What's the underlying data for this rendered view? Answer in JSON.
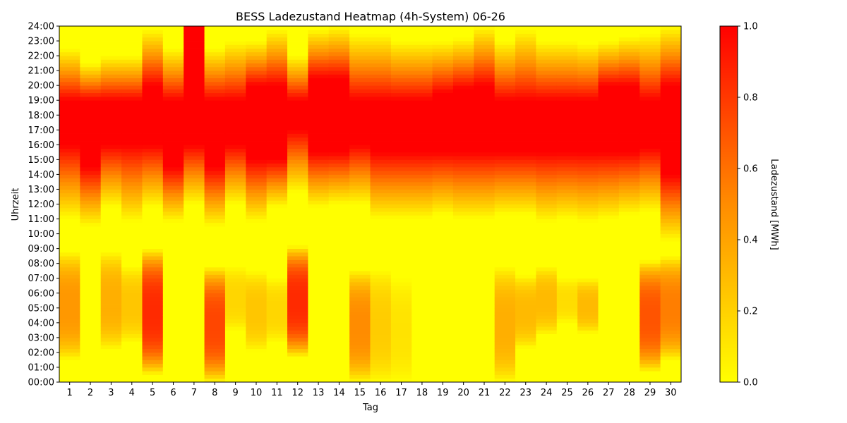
{
  "chart_data": {
    "type": "heatmap",
    "title": "BESS Ladezustand Heatmap (4h-System) 06-26",
    "xlabel": "Tag",
    "ylabel": "Uhrzeit",
    "colorbar_label": "Ladezustand [MWh]",
    "colorbar_ticks": [
      "0.0",
      "0.2",
      "0.4",
      "0.6",
      "0.8",
      "1.0"
    ],
    "value_range": [
      0,
      1
    ],
    "colormap": [
      "#ffff00",
      "#ff8c00",
      "#ff0000"
    ],
    "x_categories": [
      "1",
      "2",
      "3",
      "4",
      "5",
      "6",
      "7",
      "8",
      "9",
      "10",
      "11",
      "12",
      "13",
      "14",
      "15",
      "16",
      "17",
      "18",
      "19",
      "20",
      "21",
      "22",
      "23",
      "24",
      "25",
      "26",
      "27",
      "28",
      "29",
      "30"
    ],
    "y_ticks": [
      "00:00",
      "01:00",
      "02:00",
      "03:00",
      "04:00",
      "05:00",
      "06:00",
      "07:00",
      "08:00",
      "09:00",
      "10:00",
      "11:00",
      "12:00",
      "13:00",
      "14:00",
      "15:00",
      "16:00",
      "17:00",
      "18:00",
      "19:00",
      "20:00",
      "21:00",
      "22:00",
      "23:00",
      "24:00"
    ],
    "intervals_per_day": 96,
    "days": [
      {
        "day": 1,
        "night_charge": 0.45,
        "night_start": 1.5,
        "night_end": 8.8,
        "ramp_start": 11.0,
        "full_start": 16.0,
        "full_end": 19.0,
        "empty_at": 22.5
      },
      {
        "day": 2,
        "night_charge": 0.0,
        "night_start": 0,
        "night_end": 0,
        "ramp_start": 10.5,
        "full_start": 14.5,
        "full_end": 19.0,
        "empty_at": 21.5
      },
      {
        "day": 3,
        "night_charge": 0.35,
        "night_start": 2.2,
        "night_end": 8.8,
        "ramp_start": 11.8,
        "full_start": 16.0,
        "full_end": 19.0,
        "empty_at": 22.0
      },
      {
        "day": 4,
        "night_charge": 0.25,
        "night_start": 2.7,
        "night_end": 7.8,
        "ramp_start": 10.8,
        "full_start": 16.0,
        "full_end": 19.0,
        "empty_at": 22.0
      },
      {
        "day": 5,
        "night_charge": 0.85,
        "night_start": 0.5,
        "night_end": 9.0,
        "ramp_start": 11.8,
        "full_start": 16.0,
        "full_end": 20.0,
        "empty_at": 23.8
      },
      {
        "day": 6,
        "night_charge": 0.0,
        "night_start": 0,
        "night_end": 0,
        "ramp_start": 10.8,
        "full_start": 14.5,
        "full_end": 19.0,
        "empty_at": 22.5
      },
      {
        "day": 7,
        "night_charge": 0.0,
        "night_start": 0,
        "night_end": 0,
        "ramp_start": 12.0,
        "full_start": 16.0,
        "full_end": 24.0,
        "empty_at": 24.0
      },
      {
        "day": 8,
        "night_charge": 0.75,
        "night_start": 0.0,
        "night_end": 7.8,
        "ramp_start": 10.5,
        "full_start": 14.5,
        "full_end": 19.0,
        "empty_at": 22.5
      },
      {
        "day": 9,
        "night_charge": 0.18,
        "night_start": 3.5,
        "night_end": 7.8,
        "ramp_start": 12.0,
        "full_start": 16.0,
        "full_end": 19.0,
        "empty_at": 23.0
      },
      {
        "day": 10,
        "night_charge": 0.25,
        "night_start": 2.1,
        "night_end": 7.5,
        "ramp_start": 10.8,
        "full_start": 15.0,
        "full_end": 20.0,
        "empty_at": 23.0
      },
      {
        "day": 11,
        "night_charge": 0.18,
        "night_start": 2.7,
        "night_end": 7.0,
        "ramp_start": 11.8,
        "full_start": 15.0,
        "full_end": 20.0,
        "empty_at": 23.8
      },
      {
        "day": 12,
        "night_charge": 0.85,
        "night_start": 1.7,
        "night_end": 9.2,
        "ramp_start": 12.8,
        "full_start": 17.0,
        "full_end": 19.0,
        "empty_at": 22.0
      },
      {
        "day": 13,
        "night_charge": 0.0,
        "night_start": 0,
        "night_end": 0,
        "ramp_start": 11.8,
        "full_start": 15.5,
        "full_end": 20.5,
        "empty_at": 23.8
      },
      {
        "day": 14,
        "night_charge": 0.0,
        "night_start": 0,
        "night_end": 0,
        "ramp_start": 12.0,
        "full_start": 15.5,
        "full_end": 20.5,
        "empty_at": 24.0
      },
      {
        "day": 15,
        "night_charge": 0.5,
        "night_start": 0.0,
        "night_end": 7.6,
        "ramp_start": 12.0,
        "full_start": 16.0,
        "full_end": 19.0,
        "empty_at": 23.5
      },
      {
        "day": 16,
        "night_charge": 0.22,
        "night_start": 0.0,
        "night_end": 7.6,
        "ramp_start": 11.0,
        "full_start": 15.5,
        "full_end": 19.0,
        "empty_at": 23.5
      },
      {
        "day": 17,
        "night_charge": 0.12,
        "night_start": 0.0,
        "night_end": 7.0,
        "ramp_start": 11.0,
        "full_start": 15.5,
        "full_end": 19.0,
        "empty_at": 23.0
      },
      {
        "day": 18,
        "night_charge": 0.0,
        "night_start": 0,
        "night_end": 0,
        "ramp_start": 11.0,
        "full_start": 15.5,
        "full_end": 19.0,
        "empty_at": 23.0
      },
      {
        "day": 19,
        "night_charge": 0.0,
        "night_start": 0,
        "night_end": 0,
        "ramp_start": 11.3,
        "full_start": 15.5,
        "full_end": 19.5,
        "empty_at": 23.0
      },
      {
        "day": 20,
        "night_charge": 0.0,
        "night_start": 0,
        "night_end": 0,
        "ramp_start": 11.0,
        "full_start": 15.5,
        "full_end": 19.8,
        "empty_at": 23.2
      },
      {
        "day": 21,
        "night_charge": 0.0,
        "night_start": 0,
        "night_end": 0,
        "ramp_start": 11.0,
        "full_start": 15.5,
        "full_end": 20.0,
        "empty_at": 24.0
      },
      {
        "day": 22,
        "night_charge": 0.35,
        "night_start": 0.0,
        "night_end": 7.8,
        "ramp_start": 11.3,
        "full_start": 15.5,
        "full_end": 19.0,
        "empty_at": 23.0
      },
      {
        "day": 23,
        "night_charge": 0.3,
        "night_start": 2.3,
        "night_end": 7.2,
        "ramp_start": 11.3,
        "full_start": 15.5,
        "full_end": 19.0,
        "empty_at": 23.8
      },
      {
        "day": 24,
        "night_charge": 0.3,
        "night_start": 3.2,
        "night_end": 7.8,
        "ramp_start": 10.8,
        "full_start": 15.5,
        "full_end": 19.0,
        "empty_at": 23.0
      },
      {
        "day": 25,
        "night_charge": 0.15,
        "night_start": 4.0,
        "night_end": 7.0,
        "ramp_start": 11.0,
        "full_start": 15.5,
        "full_end": 19.0,
        "empty_at": 23.0
      },
      {
        "day": 26,
        "night_charge": 0.3,
        "night_start": 3.3,
        "night_end": 7.0,
        "ramp_start": 10.8,
        "full_start": 15.5,
        "full_end": 19.0,
        "empty_at": 22.8
      },
      {
        "day": 27,
        "night_charge": 0.0,
        "night_start": 0,
        "night_end": 0,
        "ramp_start": 11.0,
        "full_start": 15.5,
        "full_end": 20.0,
        "empty_at": 23.0
      },
      {
        "day": 28,
        "night_charge": 0.0,
        "night_start": 0,
        "night_end": 0,
        "ramp_start": 11.3,
        "full_start": 15.5,
        "full_end": 20.0,
        "empty_at": 23.3
      },
      {
        "day": 29,
        "night_charge": 0.7,
        "night_start": 0.7,
        "night_end": 8.2,
        "ramp_start": 11.5,
        "full_start": 15.8,
        "full_end": 19.0,
        "empty_at": 23.5
      },
      {
        "day": 30,
        "night_charge": 0.55,
        "night_start": 1.5,
        "night_end": 8.5,
        "ramp_start": 9.5,
        "full_start": 14.0,
        "full_end": 20.0,
        "empty_at": 24.0
      }
    ]
  }
}
